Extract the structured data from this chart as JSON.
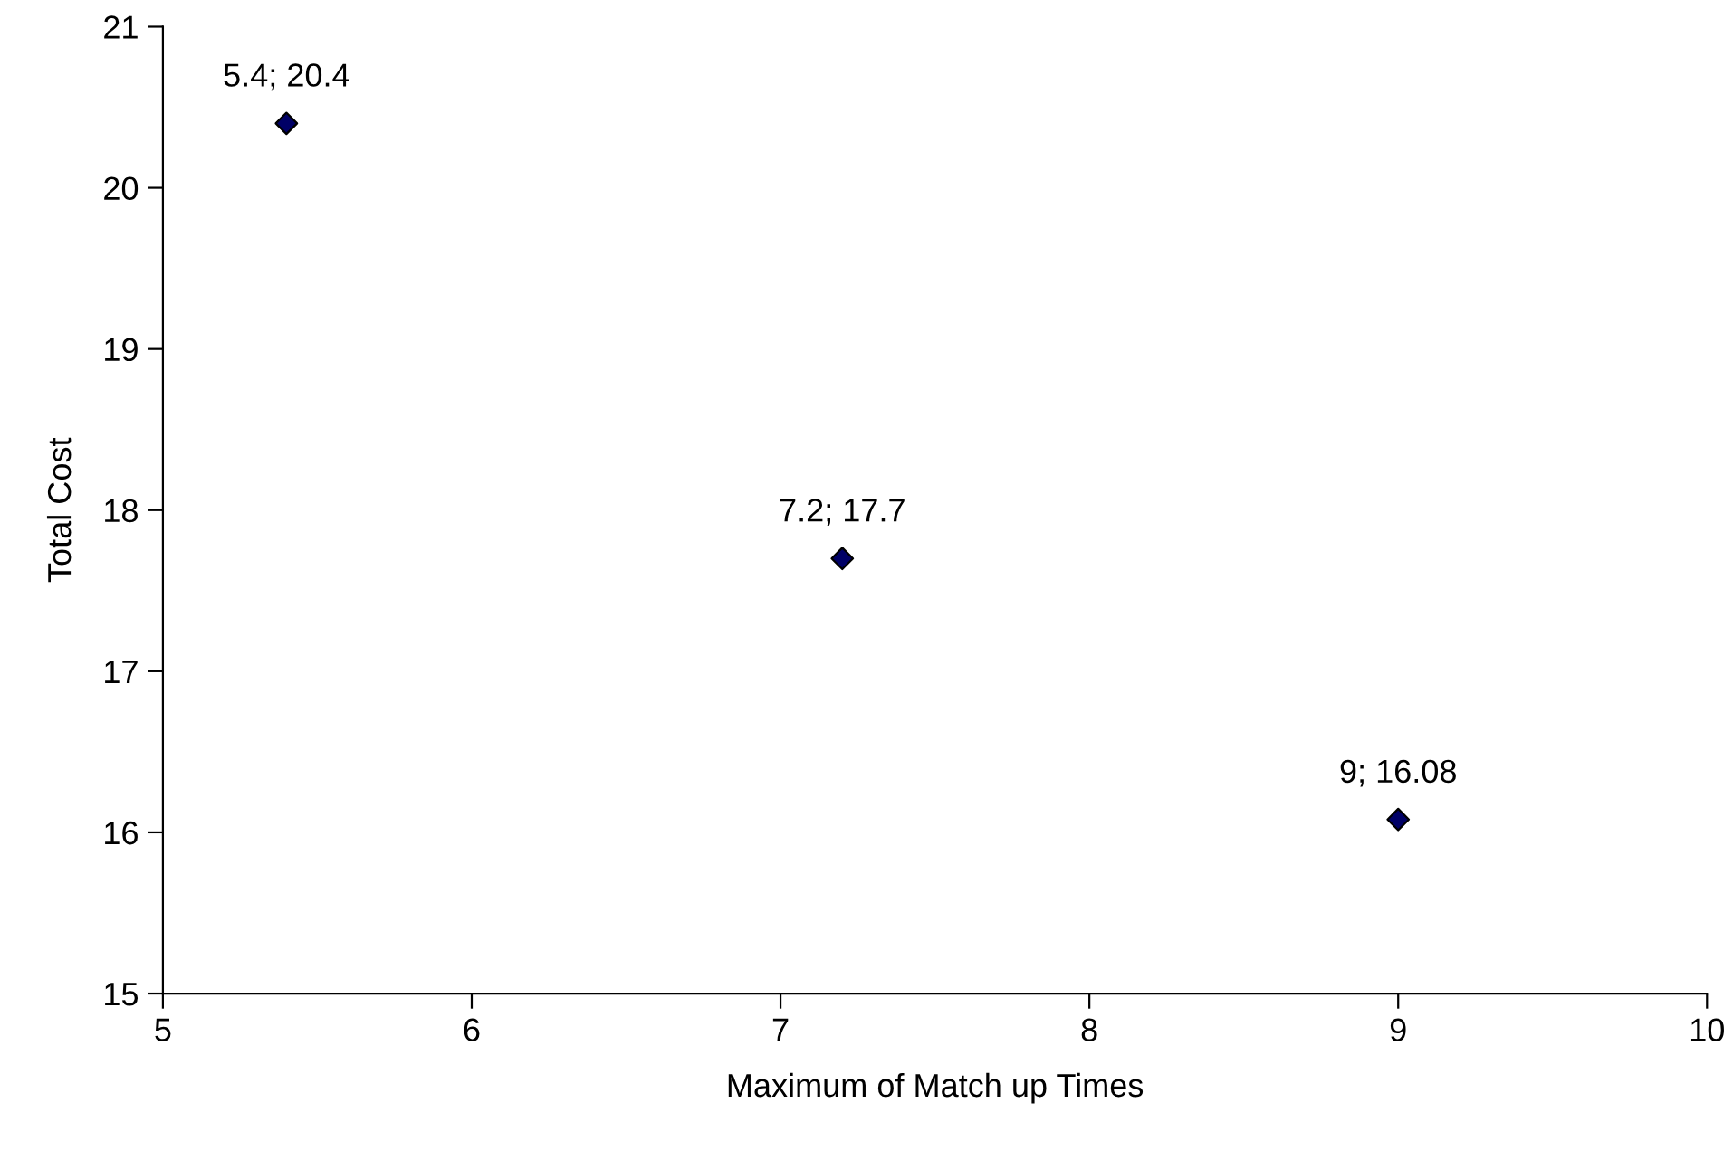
{
  "chart_data": {
    "type": "scatter",
    "xlabel": "Maximum of Match up Times",
    "ylabel": "Total Cost",
    "x": [
      5.4,
      7.2,
      9
    ],
    "series": [
      {
        "color": "#000066",
        "values": [
          20.4,
          17.7,
          16.08
        ],
        "value_labels": [
          "5.4; 20.4",
          "7.2; 17.7",
          "9; 16.08"
        ]
      }
    ],
    "xlim": [
      5,
      10
    ],
    "xticks": [
      5,
      6,
      7,
      8,
      9,
      10
    ],
    "ylim": [
      15,
      21
    ],
    "yticks": [
      15,
      16,
      17,
      18,
      19,
      20,
      21
    ],
    "marker": "diamond",
    "grid": false,
    "legend": false
  }
}
